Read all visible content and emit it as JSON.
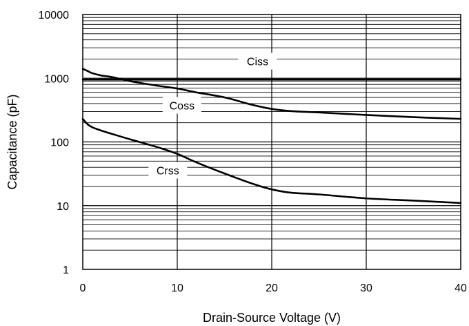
{
  "chart_data": {
    "type": "line",
    "xlabel": "Drain-Source Voltage (V)",
    "ylabel": "Capacitance (pF)",
    "xlim": [
      0,
      40
    ],
    "ylim": [
      1,
      10000
    ],
    "yscale": "log",
    "grid": true,
    "x_ticks": [
      "0",
      "10",
      "20",
      "30",
      "40"
    ],
    "y_ticks": [
      "1",
      "10",
      "100",
      "1000",
      "10000"
    ],
    "series": [
      {
        "name": "Ciss",
        "x": [
          0,
          0.5,
          1,
          2,
          3,
          5,
          10,
          20,
          30,
          40
        ],
        "y": [
          950,
          950,
          950,
          950,
          950,
          950,
          950,
          950,
          950,
          950
        ]
      },
      {
        "name": "Coss",
        "x": [
          0,
          0.5,
          1,
          2,
          3,
          5,
          8,
          10,
          12,
          15,
          18,
          20,
          22,
          25,
          30,
          35,
          40
        ],
        "y": [
          1400,
          1300,
          1200,
          1100,
          1050,
          900,
          760,
          690,
          600,
          500,
          380,
          330,
          305,
          290,
          265,
          245,
          230
        ]
      },
      {
        "name": "Crss",
        "x": [
          0,
          0.5,
          1,
          2,
          3,
          5,
          8,
          10,
          12,
          15,
          18,
          20,
          22,
          25,
          30,
          35,
          40
        ],
        "y": [
          230,
          190,
          170,
          150,
          135,
          110,
          82,
          65,
          48,
          32,
          22,
          18,
          16,
          15,
          13,
          12,
          11
        ]
      }
    ]
  }
}
